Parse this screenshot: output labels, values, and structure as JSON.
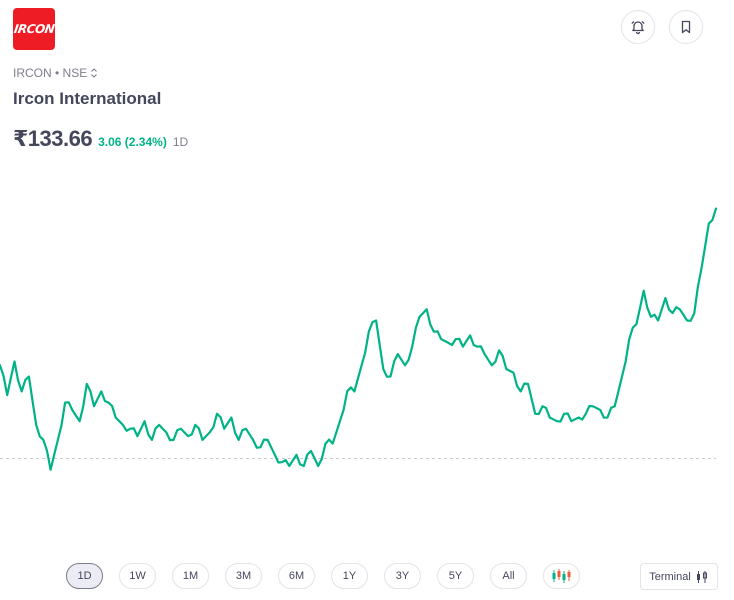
{
  "header": {
    "logo_text": "IRCON",
    "alert_icon": "bell-alarm-icon",
    "bookmark_icon": "bookmark-icon"
  },
  "stock": {
    "exchange_label": "IRCON • NSE",
    "name": "Ircon International",
    "price": "₹133.66",
    "change": "3.06 (2.34%)",
    "period": "1D"
  },
  "colors": {
    "line": "#00b386",
    "accent_red": "#ee1c25",
    "text": "#44475b",
    "muted": "#7c7e8c"
  },
  "chart_data": {
    "type": "line",
    "title": "",
    "xlabel": "",
    "ylabel": "",
    "ylim": [
      129.4,
      134.2
    ],
    "baseline": 130.6,
    "values": [
      131.85,
      131.45,
      131.9,
      131.5,
      131.7,
      131.05,
      130.85,
      130.45,
      130.85,
      131.35,
      131.25,
      131.1,
      131.6,
      131.3,
      131.5,
      131.35,
      131.15,
      131.05,
      131.0,
      130.9,
      131.1,
      130.85,
      131.05,
      130.95,
      130.85,
      131.0,
      130.9,
      131.05,
      130.85,
      130.95,
      131.2,
      131.0,
      131.15,
      130.85,
      131.0,
      130.85,
      130.75,
      130.85,
      130.65,
      130.55,
      130.5,
      130.65,
      130.5,
      130.7,
      130.5,
      130.8,
      130.8,
      131.1,
      131.5,
      131.5,
      131.85,
      132.3,
      132.45,
      131.8,
      131.7,
      132.0,
      131.85,
      132.1,
      132.5,
      132.6,
      132.3,
      132.2,
      132.15,
      132.2,
      132.1,
      132.25,
      132.1,
      132.0,
      131.85,
      132.05,
      131.8,
      131.75,
      131.5,
      131.6,
      131.2,
      131.3,
      131.15,
      131.1,
      131.2,
      131.1,
      131.15,
      131.2,
      131.3,
      131.25,
      131.15,
      131.3,
      131.7,
      132.2,
      132.4,
      132.85,
      132.5,
      132.45,
      132.75,
      132.55,
      132.6,
      132.45,
      132.55,
      133.15,
      133.75,
      133.95
    ]
  },
  "range_buttons": [
    "1D",
    "1W",
    "1M",
    "3M",
    "6M",
    "1Y",
    "3Y",
    "5Y",
    "All"
  ],
  "terminal_label": "Terminal"
}
